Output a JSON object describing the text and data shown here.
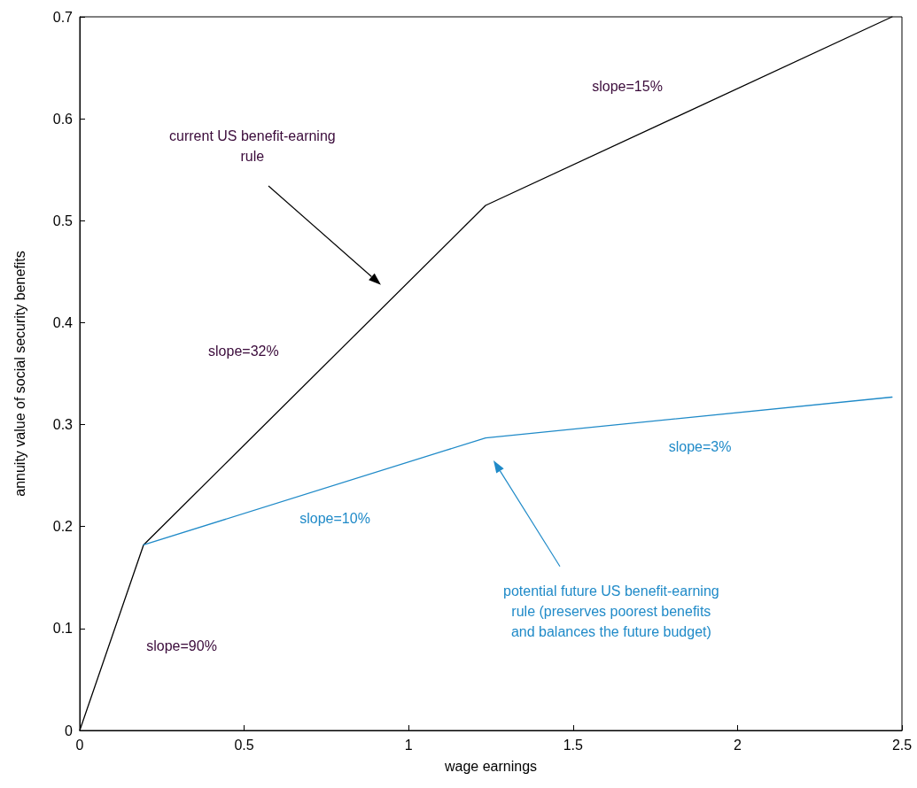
{
  "chart_data": {
    "type": "line",
    "xlabel": "wage earnings",
    "ylabel": "annuity value of social security benefits",
    "series": [
      {
        "color": "#000000",
        "x": [
          0,
          0.194,
          1.234,
          2.47
        ],
        "values": [
          0,
          0.182,
          0.515,
          0.7
        ]
      },
      {
        "color": "#1f8ac8",
        "x": [
          0.194,
          1.234,
          2.47
        ],
        "values": [
          0.182,
          0.287,
          0.327
        ]
      }
    ],
    "xlim": [
      0,
      2.5
    ],
    "xticks": [
      0,
      0.5,
      1,
      1.5,
      2,
      2.5
    ],
    "ylim": [
      0,
      0.7
    ],
    "yticks": [
      0,
      0.1,
      0.2,
      0.3,
      0.4,
      0.5,
      0.6,
      0.7
    ],
    "grid": false,
    "marker": "none",
    "line_style": "solid",
    "annotations": [
      "slope=15%",
      "current US benefit-earning\nrule",
      "slope=32%",
      "slope=3%",
      "slope=10%",
      "potential future US benefit-earning\nrule (preserves poorest benefits\nand balances the future budget)",
      "slope=90%"
    ]
  }
}
